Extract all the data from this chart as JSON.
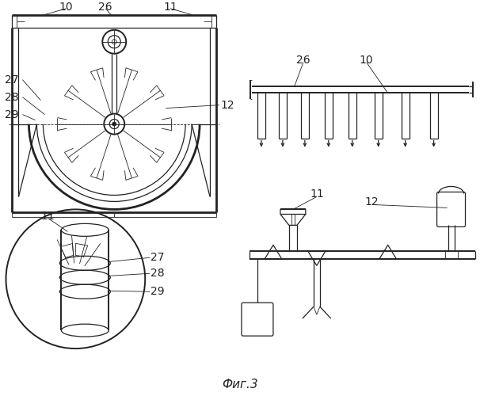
{
  "bg_color": "#ffffff",
  "line_color": "#222222",
  "fig_caption": "Фиг.3",
  "fontsize": 10
}
